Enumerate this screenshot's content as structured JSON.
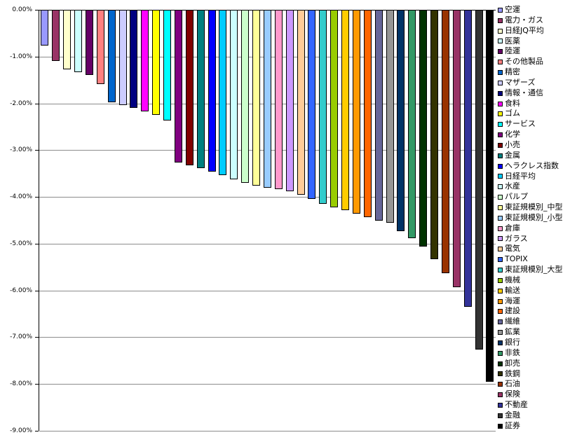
{
  "chart_data": {
    "type": "bar",
    "title": "",
    "xlabel": "",
    "ylabel": "",
    "value_format": "percent",
    "ylim": [
      -9,
      0
    ],
    "grid": true,
    "legend_position": "right",
    "ytick_labels": [
      "0.00%",
      "-1.00%",
      "-2.00%",
      "-3.00%",
      "-4.00%",
      "-5.00%",
      "-6.00%",
      "-7.00%",
      "-8.00%",
      "-9.00%"
    ],
    "series": [
      {
        "name": "空運",
        "value": -0.76,
        "color": "#9999FF"
      },
      {
        "name": "電力・ガス",
        "value": -1.1,
        "color": "#993366"
      },
      {
        "name": "日経JQ平均",
        "value": -1.28,
        "color": "#FFFFCC"
      },
      {
        "name": "医薬",
        "value": -1.33,
        "color": "#CCFFFF"
      },
      {
        "name": "陸運",
        "value": -1.4,
        "color": "#660066"
      },
      {
        "name": "その他製品",
        "value": -1.58,
        "color": "#FF8080"
      },
      {
        "name": "精密",
        "value": -1.97,
        "color": "#0066CC"
      },
      {
        "name": "マザーズ",
        "value": -2.03,
        "color": "#CCCCFF"
      },
      {
        "name": "情報・通信",
        "value": -2.1,
        "color": "#000080"
      },
      {
        "name": "食料",
        "value": -2.17,
        "color": "#FF00FF"
      },
      {
        "name": "ゴム",
        "value": -2.25,
        "color": "#FFFF00"
      },
      {
        "name": "サービス",
        "value": -2.36,
        "color": "#00FFFF"
      },
      {
        "name": "化学",
        "value": -3.26,
        "color": "#800080"
      },
      {
        "name": "小売",
        "value": -3.32,
        "color": "#800000"
      },
      {
        "name": "金属",
        "value": -3.38,
        "color": "#008080"
      },
      {
        "name": "ヘラクレス指数",
        "value": -3.46,
        "color": "#0000FF"
      },
      {
        "name": "日経平均",
        "value": -3.53,
        "color": "#00CCFF"
      },
      {
        "name": "水産",
        "value": -3.62,
        "color": "#CCFFFF"
      },
      {
        "name": "パルプ",
        "value": -3.7,
        "color": "#CCFFCC"
      },
      {
        "name": "東証規模別_中型",
        "value": -3.76,
        "color": "#FFFF99"
      },
      {
        "name": "東証規模別_小型",
        "value": -3.8,
        "color": "#99CCFF"
      },
      {
        "name": "倉庫",
        "value": -3.84,
        "color": "#FF99CC"
      },
      {
        "name": "ガラス",
        "value": -3.88,
        "color": "#CC99FF"
      },
      {
        "name": "電気",
        "value": -3.95,
        "color": "#FFCC99"
      },
      {
        "name": "TOPIX",
        "value": -4.05,
        "color": "#3366FF"
      },
      {
        "name": "東証規模別_大型",
        "value": -4.15,
        "color": "#33CCCC"
      },
      {
        "name": "機械",
        "value": -4.22,
        "color": "#99CC00"
      },
      {
        "name": "輸送",
        "value": -4.28,
        "color": "#FFCC00"
      },
      {
        "name": "海運",
        "value": -4.36,
        "color": "#FF9900"
      },
      {
        "name": "建設",
        "value": -4.43,
        "color": "#FF6600"
      },
      {
        "name": "繊維",
        "value": -4.5,
        "color": "#666699"
      },
      {
        "name": "鉱業",
        "value": -4.55,
        "color": "#969696"
      },
      {
        "name": "銀行",
        "value": -4.73,
        "color": "#003366"
      },
      {
        "name": "非鉄",
        "value": -4.88,
        "color": "#339966"
      },
      {
        "name": "卸売",
        "value": -5.06,
        "color": "#003300"
      },
      {
        "name": "鉄鋼",
        "value": -5.33,
        "color": "#333300"
      },
      {
        "name": "石油",
        "value": -5.63,
        "color": "#993300"
      },
      {
        "name": "保険",
        "value": -5.93,
        "color": "#993366"
      },
      {
        "name": "不動産",
        "value": -6.35,
        "color": "#333399"
      },
      {
        "name": "金融",
        "value": -7.27,
        "color": "#333333"
      },
      {
        "name": "証券",
        "value": -7.95,
        "color": "#000000"
      }
    ]
  }
}
